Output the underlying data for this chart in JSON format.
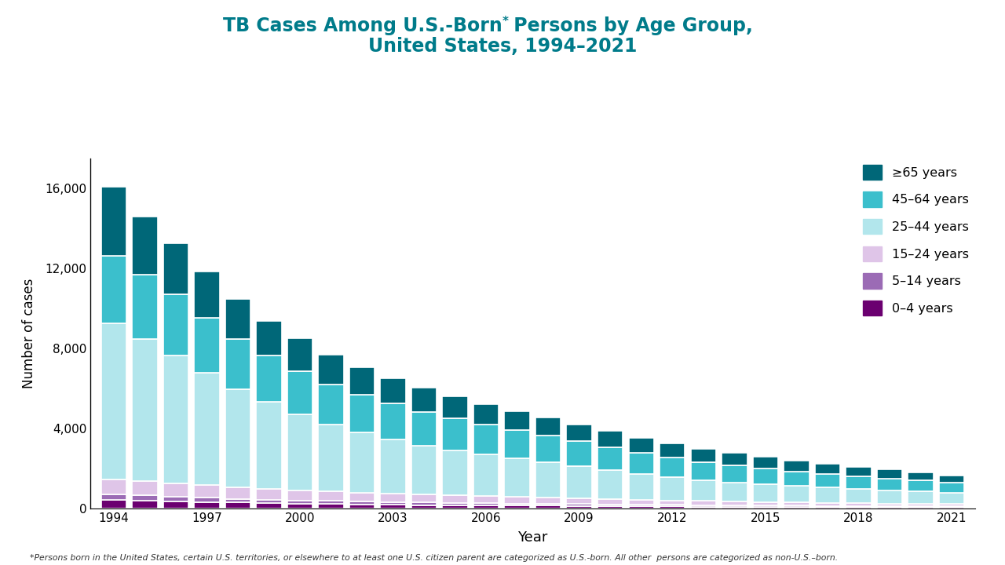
{
  "years": [
    1994,
    1995,
    1996,
    1997,
    1998,
    1999,
    2000,
    2001,
    2002,
    2003,
    2004,
    2005,
    2006,
    2007,
    2008,
    2009,
    2010,
    2011,
    2012,
    2013,
    2014,
    2015,
    2016,
    2017,
    2018,
    2019,
    2020,
    2021
  ],
  "age_groups": [
    "0–4 years",
    "5–14 years",
    "15–24 years",
    "25–44 years",
    "45–64 years",
    "≥65 years"
  ],
  "colors": [
    "#6b0070",
    "#9b6bb5",
    "#dfc5e8",
    "#b2e6ec",
    "#3bbfcc",
    "#006778"
  ],
  "data": {
    "0–4 years": [
      430,
      400,
      360,
      330,
      295,
      265,
      245,
      225,
      205,
      190,
      175,
      165,
      155,
      145,
      138,
      130,
      120,
      112,
      105,
      98,
      92,
      88,
      82,
      78,
      72,
      68,
      62,
      60
    ],
    "5–14 years": [
      270,
      255,
      230,
      210,
      190,
      175,
      162,
      152,
      142,
      132,
      122,
      114,
      108,
      100,
      94,
      88,
      84,
      78,
      72,
      68,
      64,
      60,
      56,
      54,
      50,
      47,
      44,
      42
    ],
    "15–24 years": [
      740,
      710,
      670,
      625,
      585,
      545,
      505,
      476,
      448,
      420,
      392,
      368,
      348,
      328,
      308,
      288,
      268,
      248,
      228,
      212,
      198,
      184,
      172,
      158,
      148,
      138,
      128,
      118
    ],
    "25–44 years": [
      7800,
      7100,
      6400,
      5600,
      4900,
      4350,
      3800,
      3350,
      3000,
      2700,
      2450,
      2250,
      2080,
      1920,
      1760,
      1600,
      1440,
      1290,
      1150,
      1040,
      940,
      870,
      810,
      760,
      710,
      660,
      610,
      560
    ],
    "45–64 years": [
      3400,
      3200,
      3050,
      2750,
      2500,
      2300,
      2150,
      2000,
      1900,
      1800,
      1700,
      1600,
      1520,
      1430,
      1340,
      1250,
      1160,
      1070,
      990,
      910,
      850,
      790,
      740,
      690,
      640,
      595,
      555,
      510
    ],
    "≥65 years": [
      3420,
      2900,
      2550,
      2310,
      1980,
      1750,
      1650,
      1480,
      1380,
      1270,
      1180,
      1090,
      1010,
      940,
      890,
      840,
      790,
      740,
      700,
      660,
      620,
      580,
      540,
      510,
      470,
      440,
      400,
      370
    ]
  },
  "ylabel": "Number of cases",
  "xlabel": "Year",
  "ylim": [
    0,
    17500
  ],
  "yticks": [
    0,
    4000,
    8000,
    12000,
    16000
  ],
  "title_color": "#007b8a",
  "title_line1": "TB Cases Among U.S.-Born",
  "title_star": "*",
  "title_line1b": " Persons by Age Group,",
  "title_line2": "United States, 1994–2021",
  "footnote": "*Persons born in the United States, certain U.S. territories, or elsewhere to at least one U.S. citizen parent are categorized as U.S.-born. All other  persons are categorized as non-U.S.–born.",
  "bar_edge_color": "white",
  "bar_linewidth": 1.2,
  "xtick_show": [
    1994,
    1997,
    2000,
    2003,
    2006,
    2009,
    2012,
    2015,
    2018,
    2021
  ]
}
